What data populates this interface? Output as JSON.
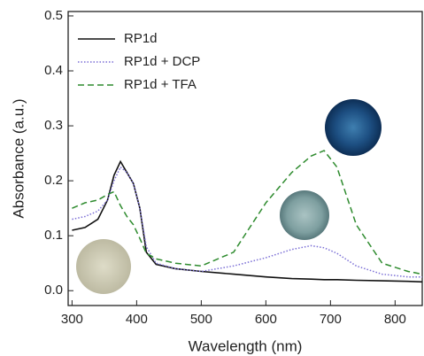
{
  "chart_data": {
    "type": "line",
    "x_label": "Wavelength (nm)",
    "y_label": "Absorbance (a.u.)",
    "x": [
      300,
      320,
      340,
      355,
      365,
      375,
      385,
      395,
      405,
      415,
      430,
      460,
      500,
      550,
      600,
      640,
      670,
      690,
      710,
      740,
      780,
      820,
      842
    ],
    "series": [
      {
        "name": "RP1d",
        "color": "#111111",
        "dash": "solid",
        "values": [
          0.11,
          0.115,
          0.13,
          0.165,
          0.21,
          0.235,
          0.215,
          0.195,
          0.15,
          0.07,
          0.048,
          0.04,
          0.035,
          0.03,
          0.025,
          0.022,
          0.021,
          0.02,
          0.02,
          0.019,
          0.018,
          0.017,
          0.016
        ]
      },
      {
        "name": "RP1d + DCP",
        "color": "#7b6fd6",
        "dash": "dotted",
        "values": [
          0.13,
          0.135,
          0.145,
          0.165,
          0.2,
          0.225,
          0.215,
          0.195,
          0.15,
          0.08,
          0.05,
          0.04,
          0.035,
          0.045,
          0.06,
          0.075,
          0.082,
          0.078,
          0.068,
          0.045,
          0.03,
          0.025,
          0.025
        ]
      },
      {
        "name": "RP1d + TFA",
        "color": "#2e8b2e",
        "dash": "dashed",
        "values": [
          0.15,
          0.16,
          0.165,
          0.175,
          0.18,
          0.155,
          0.135,
          0.12,
          0.095,
          0.068,
          0.058,
          0.05,
          0.045,
          0.07,
          0.16,
          0.215,
          0.245,
          0.255,
          0.225,
          0.12,
          0.05,
          0.035,
          0.03
        ]
      }
    ],
    "xlim": [
      294,
      842
    ],
    "ylim": [
      -0.027,
      0.508
    ],
    "xticks": [
      300,
      400,
      500,
      600,
      700,
      800
    ],
    "yticks": [
      {
        "value": 0,
        "label": "0.0"
      },
      0.1,
      0.2,
      0.3,
      0.4,
      0.5
    ],
    "legend": "upper left"
  }
}
